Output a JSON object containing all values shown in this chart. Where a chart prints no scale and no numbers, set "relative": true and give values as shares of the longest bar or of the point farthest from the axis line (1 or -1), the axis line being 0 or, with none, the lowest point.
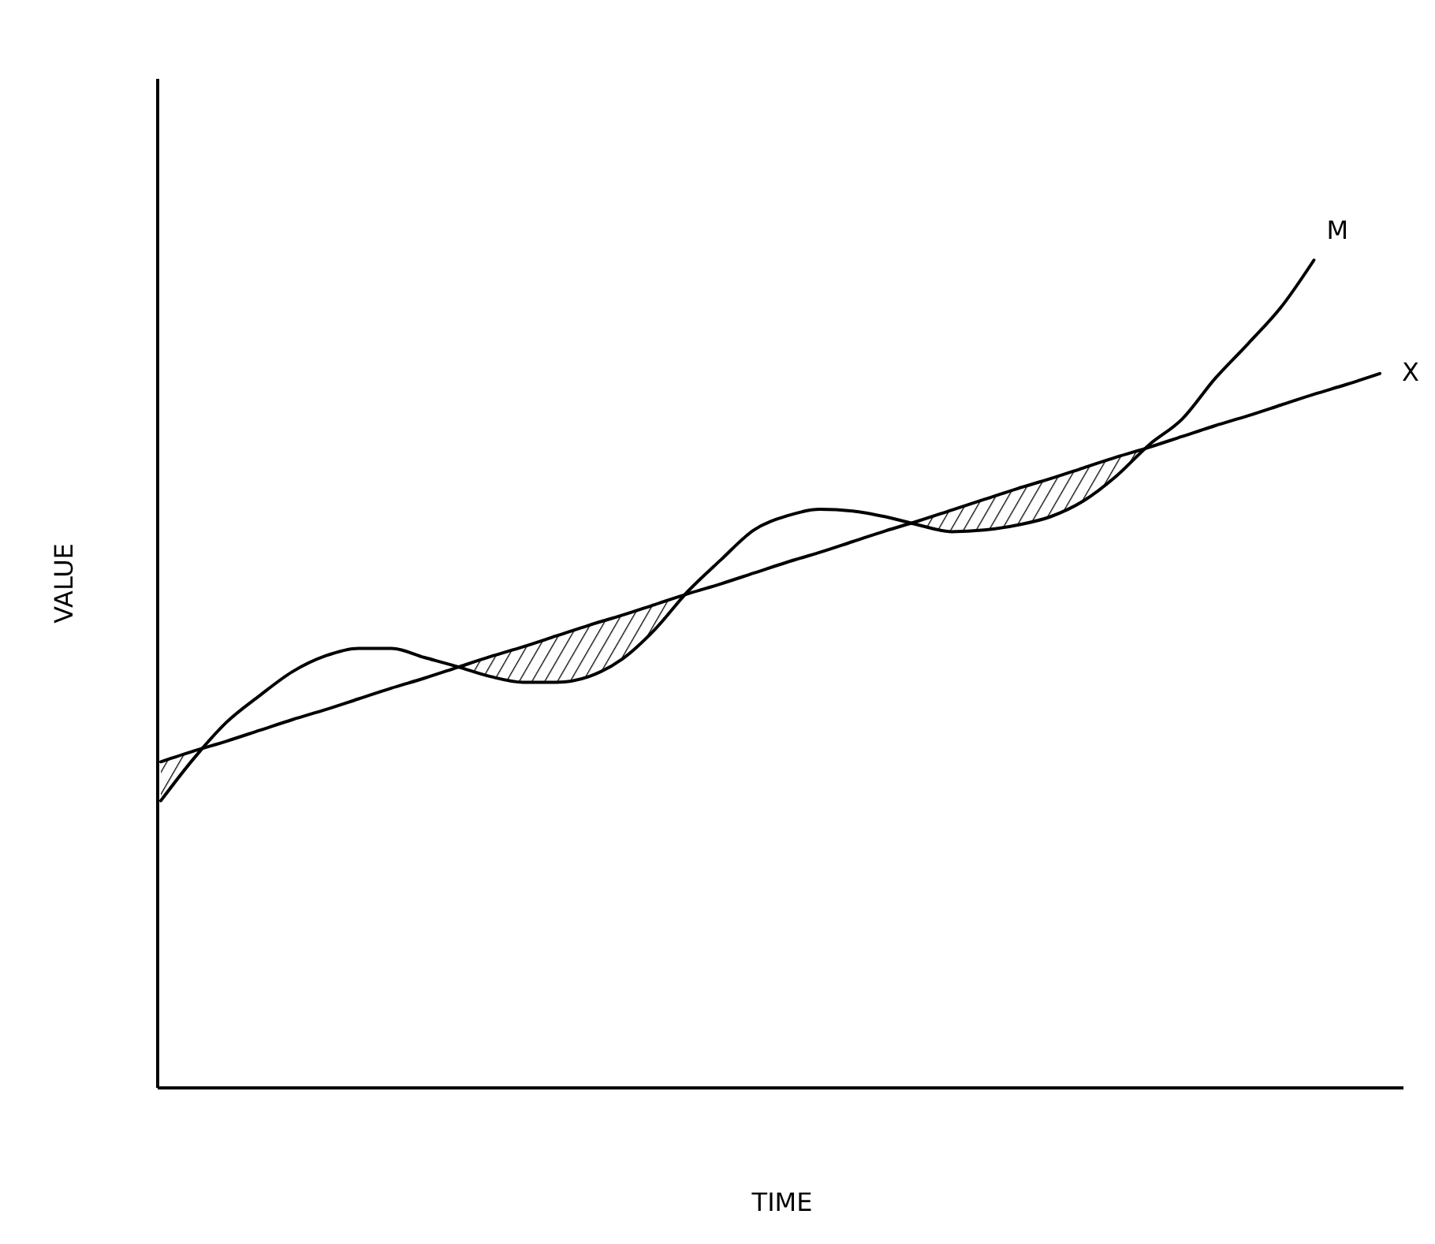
{
  "chart_data": {
    "type": "line",
    "relative": true,
    "xlabel": "TIME",
    "ylabel": "VALUE",
    "categories": [
      null,
      null,
      null,
      null,
      null,
      null,
      null,
      null,
      null,
      null,
      null,
      null,
      null,
      null,
      null,
      null,
      null,
      null,
      null,
      null,
      null,
      null,
      null,
      null,
      null,
      null,
      null,
      null,
      null,
      null,
      null,
      null,
      null,
      null,
      null,
      null,
      null,
      null
    ],
    "series": [
      {
        "name": "M",
        "color": "#000000",
        "values": [
          0.347,
          0.398,
          0.442,
          0.474,
          0.503,
          0.522,
          0.531,
          0.531,
          0.52,
          0.509,
          0.497,
          0.49,
          0.49,
          0.497,
          0.518,
          0.554,
          0.6,
          0.638,
          0.674,
          0.691,
          0.699,
          0.697,
          0.69,
          0.68,
          0.672,
          0.674,
          0.68,
          0.69,
          0.709,
          0.739,
          0.777,
          0.808,
          0.857,
          0.899,
          0.943,
          1,
          null,
          null
        ]
      },
      {
        "name": "X",
        "color": "#000000",
        "values": [
          0.394,
          0.407,
          0.419,
          0.432,
          0.445,
          0.457,
          0.47,
          0.483,
          0.495,
          0.508,
          0.521,
          0.533,
          0.546,
          0.559,
          0.571,
          0.584,
          0.597,
          0.609,
          0.622,
          0.635,
          0.647,
          0.66,
          0.673,
          0.685,
          0.698,
          0.711,
          0.724,
          0.736,
          0.749,
          0.762,
          0.774,
          0.787,
          0.8,
          0.812,
          0.825,
          0.838,
          0.85,
          0.863
        ]
      }
    ]
  }
}
